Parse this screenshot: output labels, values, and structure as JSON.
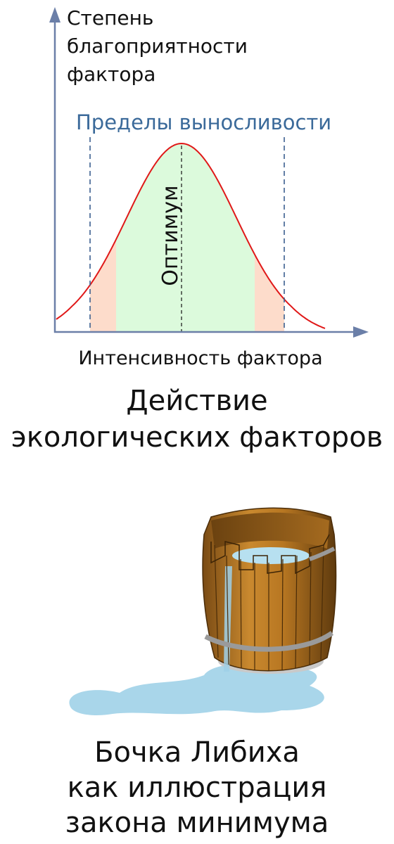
{
  "diagram": {
    "y_axis_label": [
      "Степень",
      "благоприятности",
      "фактора"
    ],
    "tolerance_label": "Пределы выносливости",
    "optimum_label": "Оптимум",
    "x_axis_label": "Интенсивность фактора",
    "caption": [
      "Действие",
      "экологических факторов"
    ]
  },
  "illustration": {
    "caption": [
      "Бочка Либиха",
      "как иллюстрация",
      "закона минимума"
    ]
  }
}
